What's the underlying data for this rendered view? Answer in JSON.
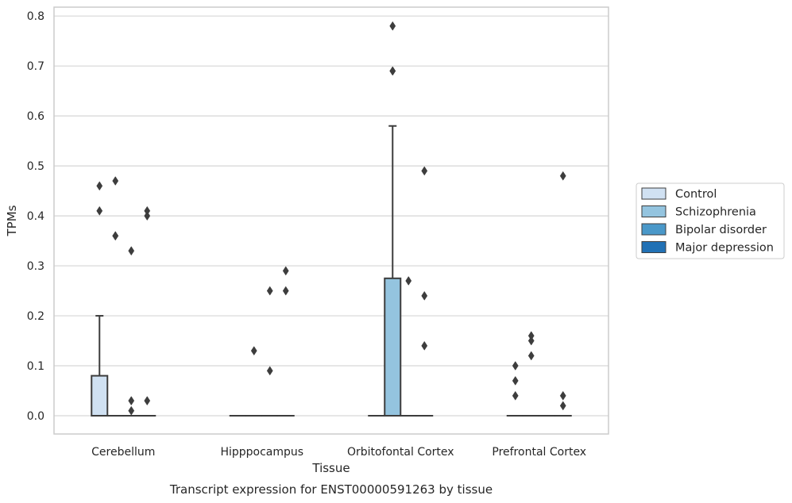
{
  "chart_data": {
    "type": "box",
    "title": "",
    "caption": "Transcript expression for ENST00000591263 by tissue",
    "xlabel": "Tissue",
    "ylabel": "TPMs",
    "ylim": [
      -0.04,
      0.82
    ],
    "yticks": [
      "0.0",
      "0.1",
      "0.2",
      "0.3",
      "0.4",
      "0.5",
      "0.6",
      "0.7",
      "0.8"
    ],
    "grid": true,
    "legend_position": "right",
    "categories": [
      "Cerebellum",
      "Hipppocampus",
      "Orbitofontal Cortex",
      "Prefrontal Cortex"
    ],
    "series": [
      {
        "name": "Control",
        "color": "#d0e1f2",
        "boxes": [
          {
            "q1": 0.0,
            "median": 0.0,
            "q3": 0.08,
            "whisker_low": 0.0,
            "whisker_high": 0.2,
            "outliers": [
              0.41,
              0.46
            ]
          },
          {
            "q1": 0.0,
            "median": 0.0,
            "q3": 0.0,
            "whisker_low": 0.0,
            "whisker_high": 0.0,
            "outliers": []
          },
          {
            "q1": 0.0,
            "median": 0.0,
            "q3": 0.0,
            "whisker_low": 0.0,
            "whisker_high": 0.0,
            "outliers": []
          },
          {
            "q1": 0.0,
            "median": 0.0,
            "q3": 0.0,
            "whisker_low": 0.0,
            "whisker_high": 0.0,
            "outliers": [
              0.04,
              0.07,
              0.1
            ]
          }
        ]
      },
      {
        "name": "Schizophrenia",
        "color": "#94c4df",
        "boxes": [
          {
            "q1": 0.0,
            "median": 0.0,
            "q3": 0.0,
            "whisker_low": 0.0,
            "whisker_high": 0.0,
            "outliers": [
              0.36,
              0.36,
              0.47
            ]
          },
          {
            "q1": 0.0,
            "median": 0.0,
            "q3": 0.0,
            "whisker_low": 0.0,
            "whisker_high": 0.0,
            "outliers": [
              0.13
            ]
          },
          {
            "q1": 0.0,
            "median": 0.0,
            "q3": 0.275,
            "whisker_low": 0.0,
            "whisker_high": 0.58,
            "outliers": [
              0.69,
              0.69,
              0.78
            ]
          },
          {
            "q1": 0.0,
            "median": 0.0,
            "q3": 0.0,
            "whisker_low": 0.0,
            "whisker_high": 0.0,
            "outliers": [
              0.12,
              0.15,
              0.16
            ]
          }
        ]
      },
      {
        "name": "Bipolar disorder",
        "color": "#4a98c9",
        "boxes": [
          {
            "q1": 0.0,
            "median": 0.0,
            "q3": 0.0,
            "whisker_low": 0.0,
            "whisker_high": 0.0,
            "outliers": [
              0.01,
              0.03,
              0.33
            ]
          },
          {
            "q1": 0.0,
            "median": 0.0,
            "q3": 0.0,
            "whisker_low": 0.0,
            "whisker_high": 0.0,
            "outliers": [
              0.09,
              0.25
            ]
          },
          {
            "q1": 0.0,
            "median": 0.0,
            "q3": 0.0,
            "whisker_low": 0.0,
            "whisker_high": 0.0,
            "outliers": [
              0.27
            ]
          },
          {
            "q1": 0.0,
            "median": 0.0,
            "q3": 0.0,
            "whisker_low": 0.0,
            "whisker_high": 0.0,
            "outliers": []
          }
        ]
      },
      {
        "name": "Major depression",
        "color": "#2171b5",
        "boxes": [
          {
            "q1": 0.0,
            "median": 0.0,
            "q3": 0.0,
            "whisker_low": 0.0,
            "whisker_high": 0.0,
            "outliers": [
              0.03,
              0.4,
              0.41
            ]
          },
          {
            "q1": 0.0,
            "median": 0.0,
            "q3": 0.0,
            "whisker_low": 0.0,
            "whisker_high": 0.0,
            "outliers": [
              0.25,
              0.29
            ]
          },
          {
            "q1": 0.0,
            "median": 0.0,
            "q3": 0.0,
            "whisker_low": 0.0,
            "whisker_high": 0.0,
            "outliers": [
              0.14,
              0.24,
              0.49
            ]
          },
          {
            "q1": 0.0,
            "median": 0.0,
            "q3": 0.0,
            "whisker_low": 0.0,
            "whisker_high": 0.0,
            "outliers": [
              0.02,
              0.04,
              0.48
            ]
          }
        ]
      }
    ]
  }
}
